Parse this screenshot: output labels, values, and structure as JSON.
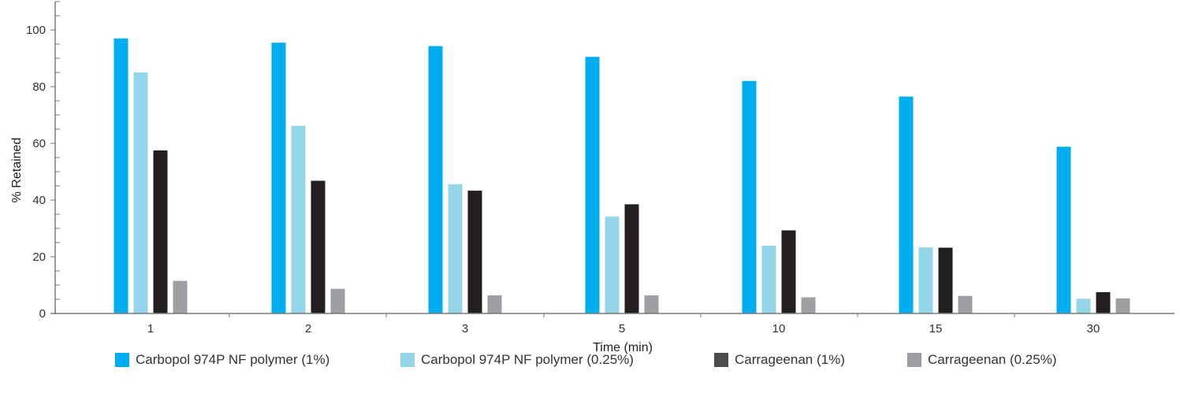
{
  "chart_data": {
    "type": "bar",
    "categories": [
      "1",
      "2",
      "3",
      "5",
      "10",
      "15",
      "30"
    ],
    "series": [
      {
        "name": "Carbopol 974P NF polymer (1%)",
        "color": "#00aeef",
        "values": [
          97,
          95.5,
          94.3,
          90.5,
          82,
          76.5,
          58.8
        ]
      },
      {
        "name": "Carbopol 974P NF polymer (0.25%)",
        "color": "#94d5ea",
        "values": [
          85,
          66.2,
          45.6,
          34.2,
          23.9,
          23.3,
          5.2
        ]
      },
      {
        "name": "Carrageenan (1%)",
        "color": "#231f20",
        "values": [
          57.5,
          46.8,
          43.3,
          38.5,
          29.3,
          23.2,
          7.5
        ]
      },
      {
        "name": "Carrageenan (0.25%)",
        "color": "#9d9fa2",
        "values": [
          11.5,
          8.7,
          6.4,
          6.4,
          5.7,
          6.2,
          5.3
        ]
      }
    ],
    "xlabel": "Time (min)",
    "ylabel": "% Retained",
    "ylim": [
      0,
      110
    ],
    "yticks": [
      "0",
      "20",
      "40",
      "60",
      "80",
      "100"
    ],
    "grid": false,
    "legend_position": "bottom"
  }
}
